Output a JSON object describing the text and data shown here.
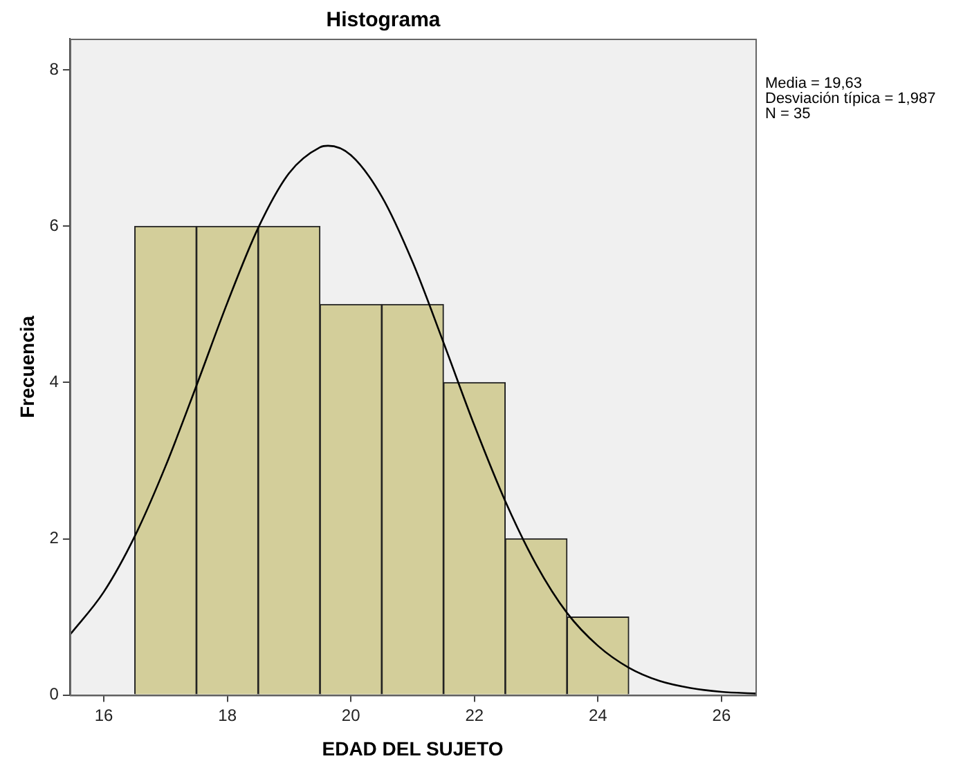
{
  "chart_data": {
    "type": "histogram",
    "title": "Histograma",
    "xlabel": "EDAD DEL SUJETO",
    "ylabel": "Frecuencia",
    "bins": [
      16.5,
      17.5,
      18.5,
      19.5,
      20.5,
      21.5,
      22.5,
      23.5,
      24.5
    ],
    "values": [
      6,
      6,
      6,
      5,
      5,
      4,
      2,
      1
    ],
    "color": "#d3ce9a",
    "series": [
      {
        "type": "line",
        "color": "#000000",
        "x": [
          15.45,
          16,
          16.5,
          17,
          17.5,
          18,
          18.5,
          19,
          19.5,
          19.63,
          20,
          20.5,
          21,
          21.5,
          22,
          22.5,
          23,
          23.5,
          24,
          24.5,
          25,
          25.5,
          26,
          26.55
        ],
        "values": [
          0.77,
          1.32,
          2.03,
          2.93,
          3.96,
          5.02,
          5.98,
          6.68,
          7.01,
          7.03,
          6.91,
          6.38,
          5.54,
          4.51,
          3.45,
          2.48,
          1.67,
          1.05,
          0.63,
          0.35,
          0.18,
          0.09,
          0.04,
          0.02
        ]
      }
    ],
    "xlim": [
      15.45,
      26.55
    ],
    "xticks": [
      16,
      18,
      20,
      22,
      24,
      26
    ],
    "ylim": [
      0,
      8.4
    ],
    "yticks": [
      0,
      2,
      4,
      6,
      8
    ],
    "grid": false,
    "legend": false,
    "marker": "none",
    "line_style": "solid",
    "annotations": [
      "Media = 19,63",
      "Desviación típica = 1,987",
      "N = 35"
    ]
  }
}
